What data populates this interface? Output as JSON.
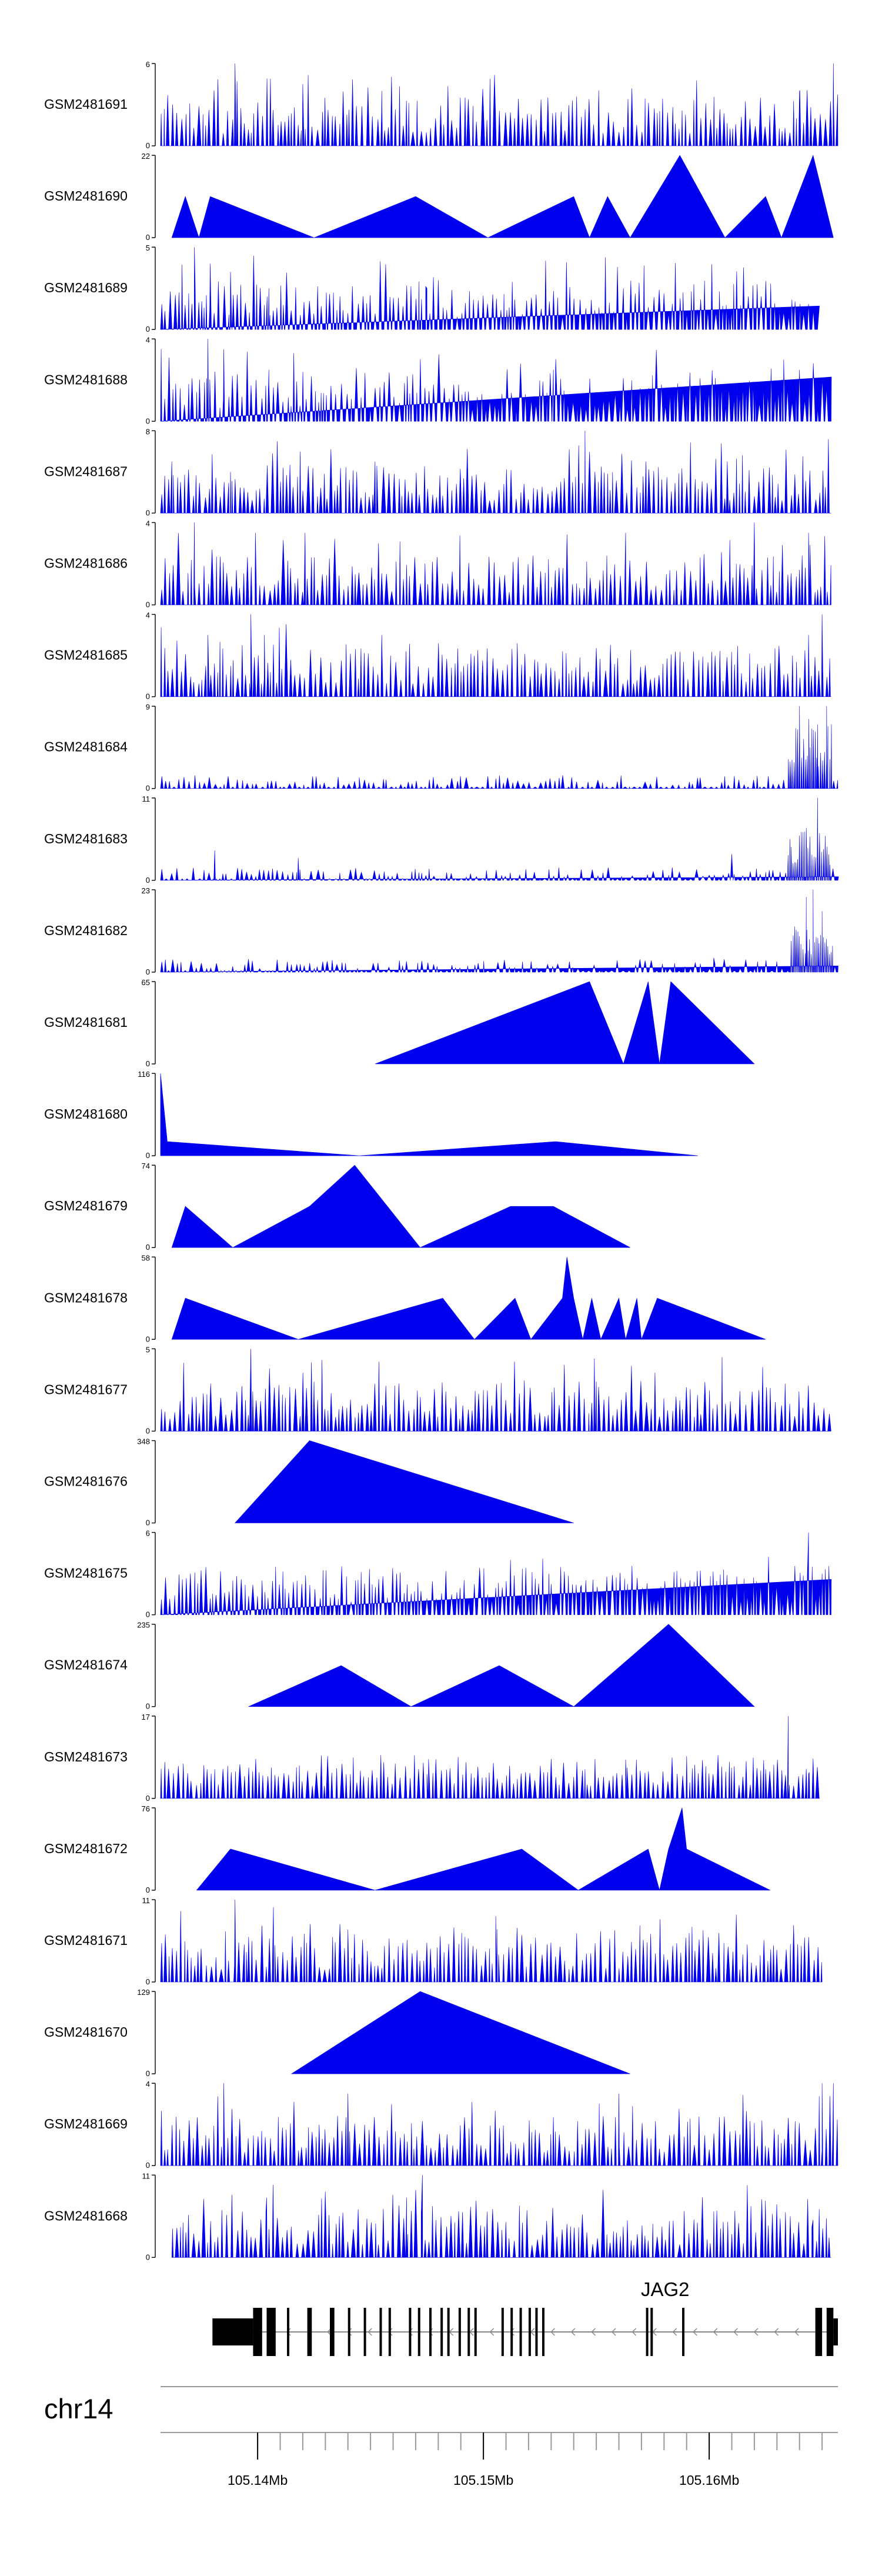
{
  "colors": {
    "fill": "#0000ee",
    "axis": "#000000",
    "gene": "#000000",
    "track_line": "#999999"
  },
  "chart_data": {
    "type": "area",
    "title": "",
    "chromosome": "chr14",
    "x_range": [
      105.1357,
      105.1657
    ],
    "x_unit": "Mb",
    "axis_ticks": [
      105.14,
      105.141,
      105.142,
      105.143,
      105.144,
      105.145,
      105.146,
      105.147,
      105.148,
      105.149,
      105.15,
      105.151,
      105.152,
      105.153,
      105.154,
      105.155,
      105.156,
      105.157,
      105.158,
      105.159,
      105.16,
      105.161,
      105.162,
      105.163,
      105.164,
      105.165
    ],
    "axis_labels": [
      {
        "value": 105.14,
        "label": "105.14Mb"
      },
      {
        "value": 105.15,
        "label": "105.15Mb"
      },
      {
        "value": 105.16,
        "label": "105.16Mb"
      }
    ],
    "gene": {
      "name": "JAG2",
      "strand": "-",
      "start": 105.138,
      "end": 105.1657,
      "exons": [
        [
          105.138,
          105.1398,
          "utr"
        ],
        [
          105.1398,
          105.1402,
          "cds"
        ],
        [
          105.1404,
          105.1408,
          "cds"
        ],
        [
          105.1413,
          105.1414,
          "cds"
        ],
        [
          105.1422,
          105.1424,
          "cds"
        ],
        [
          105.1432,
          105.1434,
          "cds"
        ],
        [
          105.144,
          105.1441,
          "cds"
        ],
        [
          105.1447,
          105.1448,
          "cds"
        ],
        [
          105.1454,
          105.1455,
          "cds"
        ],
        [
          105.1458,
          105.1459,
          "cds"
        ],
        [
          105.1467,
          105.1468,
          "cds"
        ],
        [
          105.1471,
          105.1472,
          "cds"
        ],
        [
          105.1476,
          105.1477,
          "cds"
        ],
        [
          105.1481,
          105.1482,
          "cds"
        ],
        [
          105.1484,
          105.1485,
          "cds"
        ],
        [
          105.1489,
          105.149,
          "cds"
        ],
        [
          105.1493,
          105.1494,
          "cds"
        ],
        [
          105.1496,
          105.1497,
          "cds"
        ],
        [
          105.1508,
          105.1509,
          "cds"
        ],
        [
          105.1512,
          105.1513,
          "cds"
        ],
        [
          105.1516,
          105.1517,
          "cds"
        ],
        [
          105.152,
          105.1521,
          "cds"
        ],
        [
          105.1523,
          105.1524,
          "cds"
        ],
        [
          105.1526,
          105.1527,
          "cds"
        ],
        [
          105.1572,
          105.1573,
          "cds"
        ],
        [
          105.1574,
          105.1575,
          "cds"
        ],
        [
          105.1588,
          105.1589,
          "cds"
        ],
        [
          105.1647,
          105.165,
          "cds"
        ],
        [
          105.1652,
          105.1655,
          "cds"
        ],
        [
          105.1655,
          105.1657,
          "utr"
        ]
      ]
    },
    "series": [
      {
        "name": "GSM2481691",
        "ymax": 6,
        "style": "dense",
        "seed": 91,
        "peaks": [
          [
            105.139,
            6
          ],
          [
            105.142,
            4.5
          ],
          [
            105.1455,
            4
          ],
          [
            105.164,
            4
          ],
          [
            105.1655,
            6
          ]
        ]
      },
      {
        "name": "GSM2481690",
        "ymax": 22,
        "style": "triangles",
        "points": [
          [
            105.1362,
            0
          ],
          [
            105.1368,
            11
          ],
          [
            105.1374,
            0
          ],
          [
            105.1379,
            11
          ],
          [
            105.1425,
            0
          ],
          [
            105.147,
            11
          ],
          [
            105.1502,
            0
          ],
          [
            105.154,
            11
          ],
          [
            105.1547,
            0
          ],
          [
            105.1555,
            11
          ],
          [
            105.1565,
            0
          ],
          [
            105.1587,
            22
          ],
          [
            105.1607,
            0
          ],
          [
            105.1625,
            11
          ],
          [
            105.1632,
            0
          ],
          [
            105.1646,
            22
          ],
          [
            105.1655,
            0
          ]
        ]
      },
      {
        "name": "GSM2481689",
        "ymax": 5,
        "style": "dense",
        "seed": 89,
        "fade_start": 105.1628,
        "end": 105.1648,
        "peaks": [
          [
            105.1372,
            5
          ],
          [
            105.1379,
            4
          ],
          [
            105.1388,
            3.5
          ],
          [
            105.1405,
            2.5
          ],
          [
            105.1475,
            2.5
          ],
          [
            105.1562,
            2.5
          ],
          [
            105.1612,
            2.5
          ]
        ]
      },
      {
        "name": "GSM2481688",
        "ymax": 4,
        "style": "dense",
        "seed": 88,
        "end": 105.1654,
        "peaks": [
          [
            105.1378,
            4
          ],
          [
            105.1385,
            3.5
          ],
          [
            105.1405,
            2.5
          ],
          [
            105.1531,
            2.5
          ],
          [
            105.1633,
            3
          ],
          [
            105.164,
            2.5
          ]
        ]
      },
      {
        "name": "GSM2481687",
        "ymax": 8,
        "style": "dense",
        "seed": 87,
        "end": 105.1654,
        "peaks": [
          [
            105.1362,
            5
          ],
          [
            105.1388,
            4
          ],
          [
            105.1452,
            5
          ],
          [
            105.1545,
            8
          ],
          [
            105.1572,
            5
          ],
          [
            105.1608,
            5
          ]
        ]
      },
      {
        "name": "GSM2481686",
        "ymax": 4,
        "style": "dense",
        "seed": 86,
        "end": 105.1654,
        "peaks": [
          [
            105.1372,
            4
          ],
          [
            105.1399,
            3.5
          ],
          [
            105.1421,
            3.5
          ],
          [
            105.1563,
            3.5
          ],
          [
            105.162,
            4
          ],
          [
            105.1644,
            3.5
          ]
        ]
      },
      {
        "name": "GSM2481685",
        "ymax": 4,
        "style": "dense",
        "seed": 85,
        "fade_start": 105.1455,
        "fade_value": 0.65,
        "end": 105.1654,
        "peaks": [
          [
            105.1378,
            3
          ],
          [
            105.1397,
            4
          ],
          [
            105.1403,
            3
          ],
          [
            105.1455,
            3
          ],
          [
            105.1515,
            2.6
          ],
          [
            105.1644,
            3
          ],
          [
            105.165,
            4
          ]
        ]
      },
      {
        "name": "GSM2481684",
        "ymax": 9,
        "style": "sparse",
        "seed": 84,
        "cluster_start": 105.1633,
        "cluster_end": 105.1654,
        "cluster_level": 6,
        "peaks": [
          [
            105.1445,
            1.2
          ],
          [
            105.1596,
            1.2
          ],
          [
            105.164,
            9
          ],
          [
            105.1648,
            7
          ],
          [
            105.1652,
            9
          ]
        ]
      },
      {
        "name": "GSM2481683",
        "ymax": 11,
        "style": "sparse",
        "seed": 83,
        "cluster_start": 105.1634,
        "cluster_end": 105.1654,
        "cluster_level": 5,
        "peaks": [
          [
            105.1381,
            4
          ],
          [
            105.1418,
            3
          ],
          [
            105.161,
            3.5
          ],
          [
            105.1643,
            7
          ],
          [
            105.1648,
            11
          ]
        ]
      },
      {
        "name": "GSM2481682",
        "ymax": 23,
        "style": "sparse",
        "seed": 82,
        "cluster_start": 105.1635,
        "cluster_end": 105.1655,
        "cluster_level": 10,
        "peaks": [
          [
            105.1602,
            4
          ],
          [
            105.1643,
            21
          ],
          [
            105.1646,
            23
          ],
          [
            105.165,
            17
          ]
        ]
      },
      {
        "name": "GSM2481681",
        "ymax": 65,
        "style": "triangles",
        "points": [
          [
            105.1452,
            0
          ],
          [
            105.1547,
            65
          ],
          [
            105.1562,
            0
          ],
          [
            105.1573,
            65
          ],
          [
            105.1578,
            0
          ],
          [
            105.1583,
            65
          ],
          [
            105.162,
            0
          ]
        ]
      },
      {
        "name": "GSM2481680",
        "ymax": 116,
        "style": "triangles",
        "points": [
          [
            105.1357,
            0
          ],
          [
            105.1357,
            116
          ],
          [
            105.136,
            20
          ],
          [
            105.1445,
            0
          ],
          [
            105.1532,
            20
          ],
          [
            105.1595,
            0
          ]
        ]
      },
      {
        "name": "GSM2481679",
        "ymax": 74,
        "style": "triangles",
        "points": [
          [
            105.1362,
            0
          ],
          [
            105.1368,
            37
          ],
          [
            105.1389,
            0
          ],
          [
            105.1423,
            37
          ],
          [
            105.1443,
            74
          ],
          [
            105.1472,
            0
          ],
          [
            105.1512,
            37
          ],
          [
            105.1531,
            37
          ],
          [
            105.1565,
            0
          ]
        ]
      },
      {
        "name": "GSM2481678",
        "ymax": 58,
        "style": "triangles",
        "points": [
          [
            105.1362,
            0
          ],
          [
            105.1368,
            29
          ],
          [
            105.1418,
            0
          ],
          [
            105.1482,
            29
          ],
          [
            105.1496,
            0
          ],
          [
            105.1514,
            29
          ],
          [
            105.1521,
            0
          ],
          [
            105.1535,
            29
          ],
          [
            105.1537,
            58
          ],
          [
            105.154,
            29
          ],
          [
            105.1544,
            0
          ],
          [
            105.1548,
            29
          ],
          [
            105.1552,
            0
          ],
          [
            105.156,
            29
          ],
          [
            105.1563,
            0
          ],
          [
            105.1568,
            29
          ],
          [
            105.157,
            0
          ],
          [
            105.1577,
            29
          ],
          [
            105.1625,
            0
          ]
        ]
      },
      {
        "name": "GSM2481677",
        "ymax": 5,
        "style": "dense",
        "seed": 77,
        "end": 105.1654,
        "peaks": [
          [
            105.1397,
            5
          ],
          [
            105.1425,
            3
          ],
          [
            105.15,
            2.5
          ],
          [
            105.155,
            3
          ],
          [
            105.1622,
            2.5
          ]
        ]
      },
      {
        "name": "GSM2481676",
        "ymax": 348,
        "style": "triangles",
        "points": [
          [
            105.139,
            0
          ],
          [
            105.1423,
            348
          ],
          [
            105.154,
            0
          ]
        ]
      },
      {
        "name": "GSM2481675",
        "ymax": 6,
        "style": "dense",
        "seed": 75,
        "fade_start": 105.1357,
        "fade_value": 0.7,
        "end": 105.1654,
        "peaks": [
          [
            105.1512,
            4
          ],
          [
            105.1529,
            3
          ],
          [
            105.1543,
            2
          ],
          [
            105.1644,
            6
          ],
          [
            105.165,
            3
          ]
        ]
      },
      {
        "name": "GSM2481674",
        "ymax": 235,
        "style": "triangles",
        "points": [
          [
            105.1396,
            0
          ],
          [
            105.1437,
            117
          ],
          [
            105.1468,
            0
          ],
          [
            105.1507,
            117
          ],
          [
            105.154,
            0
          ],
          [
            105.1582,
            235
          ],
          [
            105.162,
            0
          ]
        ]
      },
      {
        "name": "GSM2481673",
        "ymax": 17,
        "style": "dense",
        "seed": 73,
        "fade_start": 105.1357,
        "fade_value": 0.5,
        "end": 105.1649,
        "peaks": [
          [
            105.1381,
            6
          ],
          [
            105.1475,
            5
          ],
          [
            105.1545,
            6
          ],
          [
            105.1563,
            8
          ],
          [
            105.1625,
            6
          ],
          [
            105.1635,
            17
          ],
          [
            105.1644,
            5
          ]
        ]
      },
      {
        "name": "GSM2481672",
        "ymax": 76,
        "style": "triangles",
        "points": [
          [
            105.1373,
            0
          ],
          [
            105.1388,
            38
          ],
          [
            105.1452,
            0
          ],
          [
            105.1517,
            38
          ],
          [
            105.1542,
            0
          ],
          [
            105.1573,
            38
          ],
          [
            105.1578,
            0
          ],
          [
            105.1582,
            38
          ],
          [
            105.1588,
            76
          ],
          [
            105.159,
            38
          ],
          [
            105.1627,
            0
          ]
        ]
      },
      {
        "name": "GSM2481671",
        "ymax": 11,
        "style": "dense",
        "seed": 71,
        "fade_start": 105.1357,
        "fade_value": 0.8,
        "end": 105.165,
        "peaks": [
          [
            105.139,
            11
          ],
          [
            105.1395,
            4
          ],
          [
            105.1407,
            10
          ],
          [
            105.144,
            7
          ],
          [
            105.1506,
            7
          ],
          [
            105.1578,
            4
          ]
        ]
      },
      {
        "name": "GSM2481670",
        "ymax": 129,
        "style": "triangles",
        "points": [
          [
            105.1415,
            0
          ],
          [
            105.1472,
            129
          ],
          [
            105.1565,
            0
          ]
        ]
      },
      {
        "name": "GSM2481669",
        "ymax": 4,
        "style": "dense",
        "seed": 69,
        "peaks": [
          [
            105.1385,
            4
          ],
          [
            105.144,
            3.5
          ],
          [
            105.156,
            3.5
          ],
          [
            105.165,
            4
          ],
          [
            105.1655,
            4
          ]
        ]
      },
      {
        "name": "GSM2481668",
        "ymax": 11,
        "style": "dense",
        "seed": 68,
        "start": 105.1362,
        "end": 105.1654,
        "peaks": [
          [
            105.1404,
            8
          ],
          [
            105.1466,
            8
          ],
          [
            105.1473,
            11
          ],
          [
            105.1479,
            5
          ],
          [
            105.1646,
            5
          ]
        ]
      }
    ]
  }
}
